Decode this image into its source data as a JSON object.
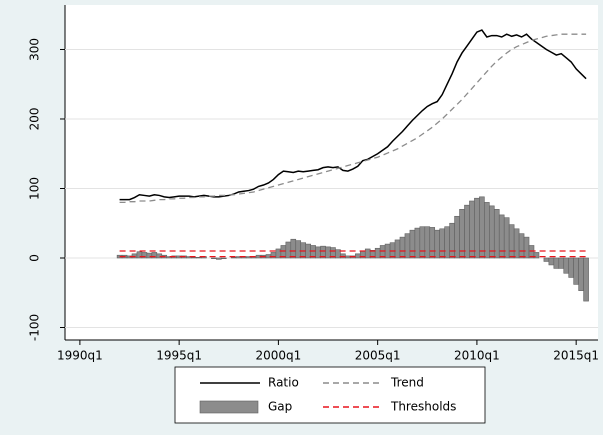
{
  "chart_data": {
    "type": "line",
    "x": [
      1992,
      1992.25,
      1992.5,
      1992.75,
      1993,
      1993.25,
      1993.5,
      1993.75,
      1994,
      1994.25,
      1994.5,
      1994.75,
      1995,
      1995.25,
      1995.5,
      1995.75,
      1996,
      1996.25,
      1996.5,
      1996.75,
      1997,
      1997.25,
      1997.5,
      1997.75,
      1998,
      1998.25,
      1998.5,
      1998.75,
      1999,
      1999.25,
      1999.5,
      1999.75,
      2000,
      2000.25,
      2000.5,
      2000.75,
      2001,
      2001.25,
      2001.5,
      2001.75,
      2002,
      2002.25,
      2002.5,
      2002.75,
      2003,
      2003.25,
      2003.5,
      2003.75,
      2004,
      2004.25,
      2004.5,
      2004.75,
      2005,
      2005.25,
      2005.5,
      2005.75,
      2006,
      2006.25,
      2006.5,
      2006.75,
      2007,
      2007.25,
      2007.5,
      2007.75,
      2008,
      2008.25,
      2008.5,
      2008.75,
      2009,
      2009.25,
      2009.5,
      2009.75,
      2010,
      2010.25,
      2010.5,
      2010.75,
      2011,
      2011.25,
      2011.5,
      2011.75,
      2012,
      2012.25,
      2012.5,
      2012.75,
      2013,
      2013.25,
      2013.5,
      2013.75,
      2014,
      2014.25,
      2014.5,
      2014.75,
      2015,
      2015.25,
      2015.5
    ],
    "series": [
      {
        "name": "Ratio",
        "type": "line",
        "color": "#000000",
        "dash": false,
        "values": [
          84,
          84,
          84,
          87,
          91,
          90,
          89,
          91,
          90,
          88,
          87,
          88,
          89,
          89,
          89,
          88,
          89,
          90,
          89,
          88,
          88,
          89,
          90,
          92,
          95,
          96,
          97,
          99,
          103,
          105,
          108,
          113,
          120,
          125,
          124,
          123,
          125,
          124,
          125,
          126,
          127,
          130,
          131,
          130,
          131,
          126,
          125,
          128,
          132,
          140,
          142,
          146,
          150,
          155,
          160,
          168,
          175,
          182,
          190,
          198,
          205,
          212,
          218,
          222,
          225,
          235,
          250,
          265,
          282,
          295,
          305,
          315,
          325,
          328,
          318,
          320,
          320,
          318,
          322,
          319,
          321,
          318,
          322,
          315,
          310,
          305,
          300,
          296,
          292,
          294,
          288,
          282,
          272,
          265,
          258
        ]
      },
      {
        "name": "Trend",
        "type": "line",
        "color": "#8c8c8c",
        "dash": true,
        "values": [
          80,
          80,
          81,
          81,
          82,
          82,
          82,
          83,
          84,
          84,
          85,
          85,
          86,
          86,
          87,
          87,
          88,
          88,
          89,
          89,
          90,
          90,
          91,
          91,
          92,
          93,
          94,
          95,
          97,
          99,
          101,
          103,
          105,
          107,
          109,
          111,
          113,
          115,
          117,
          119,
          121,
          123,
          125,
          127,
          129,
          131,
          133,
          135,
          137,
          139,
          141,
          143,
          145,
          148,
          151,
          154,
          157,
          161,
          165,
          169,
          173,
          178,
          183,
          188,
          194,
          200,
          207,
          214,
          221,
          228,
          236,
          244,
          252,
          260,
          268,
          276,
          283,
          289,
          295,
          300,
          304,
          307,
          310,
          313,
          315,
          317,
          319,
          320,
          321,
          322,
          322,
          322,
          322,
          322,
          322
        ]
      },
      {
        "name": "Gap",
        "type": "bar",
        "color": "#8c8c8c",
        "values": [
          4,
          4,
          3,
          6,
          9,
          8,
          7,
          8,
          6,
          4,
          2,
          3,
          3,
          3,
          2,
          1,
          1,
          2,
          0,
          -1,
          -2,
          -1,
          0,
          1,
          2,
          2,
          2,
          2,
          4,
          4,
          5,
          8,
          13,
          18,
          23,
          27,
          25,
          22,
          20,
          18,
          16,
          17,
          16,
          15,
          12,
          6,
          3,
          3,
          6,
          10,
          13,
          11,
          14,
          18,
          20,
          22,
          26,
          30,
          35,
          40,
          43,
          45,
          45,
          44,
          40,
          42,
          45,
          50,
          60,
          70,
          76,
          82,
          86,
          88,
          80,
          75,
          70,
          62,
          58,
          48,
          42,
          35,
          30,
          18,
          8,
          0,
          -5,
          -10,
          -15,
          -15,
          -22,
          -28,
          -38,
          -47,
          -62
        ]
      }
    ],
    "thresholds": {
      "name": "Thresholds",
      "color": "#e8141b",
      "values": [
        2,
        10
      ]
    },
    "xlim": [
      1989.25,
      2016.1
    ],
    "xticks": [
      {
        "value": 1990,
        "label": "1990q1"
      },
      {
        "value": 1995,
        "label": "1995q1"
      },
      {
        "value": 2000,
        "label": "2000q1"
      },
      {
        "value": 2005,
        "label": "2005q1"
      },
      {
        "value": 2010,
        "label": "2010q1"
      },
      {
        "value": 2015,
        "label": "2015q1"
      }
    ],
    "ylim": [
      -118,
      364
    ],
    "yticks": [
      -100,
      0,
      100,
      200,
      300
    ],
    "grid": true
  }
}
